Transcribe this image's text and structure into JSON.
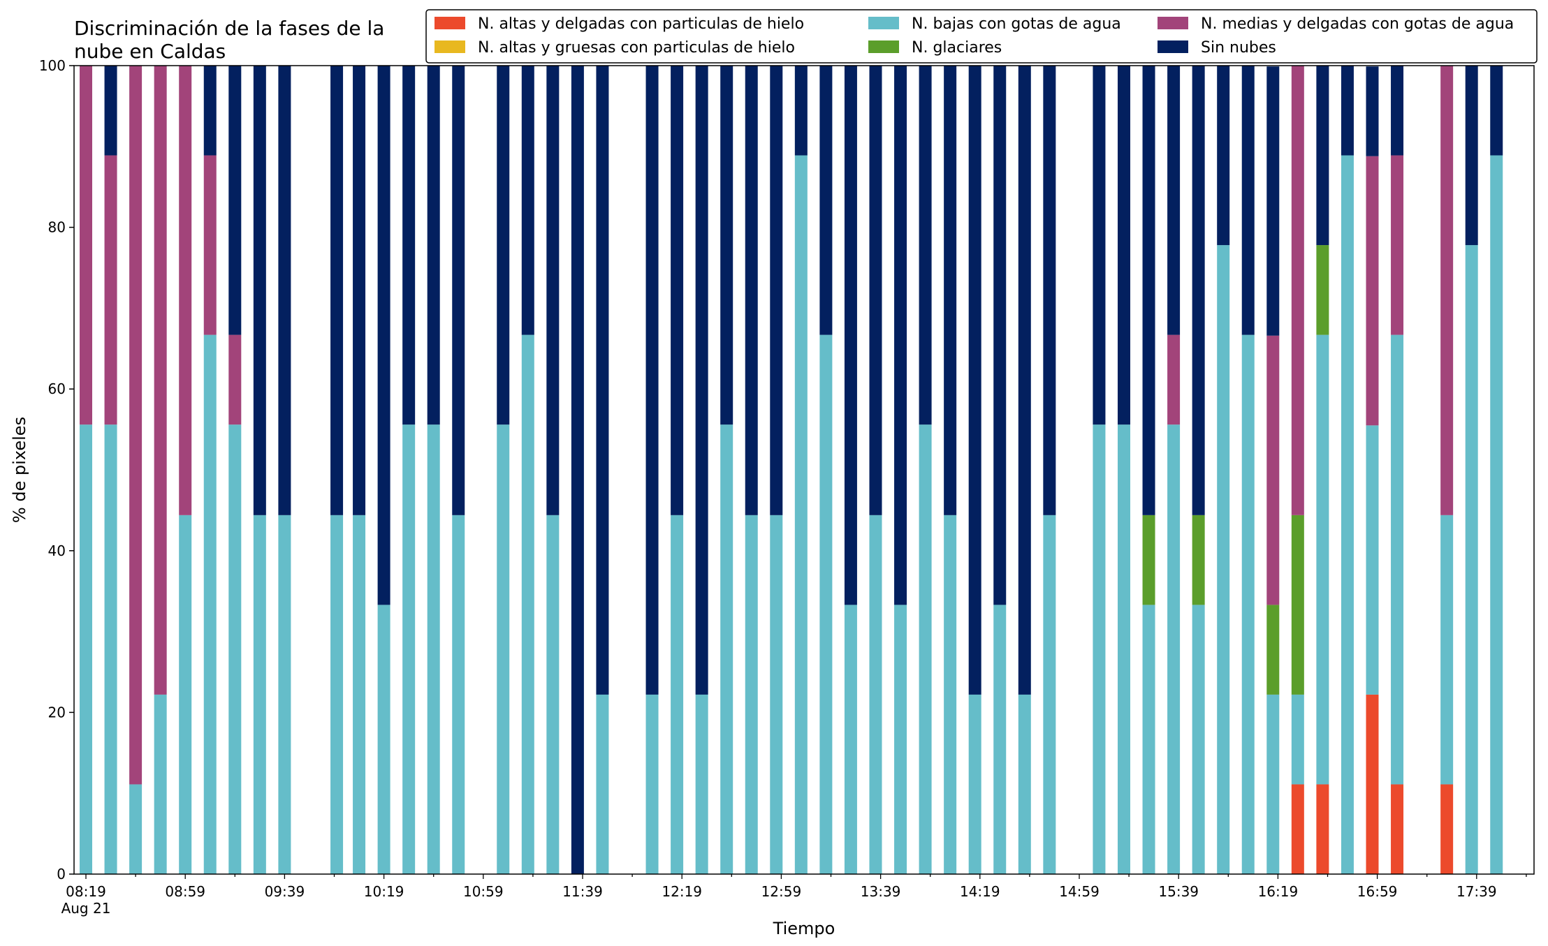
{
  "chart_data": {
    "type": "bar",
    "stacked": true,
    "title_lines": [
      "Discriminación de la fases de la",
      "nube en Caldas"
    ],
    "xlabel": "Tiempo",
    "ylabel": "% de pixeles",
    "ylim": [
      0,
      100
    ],
    "yticks": [
      0,
      20,
      40,
      60,
      80,
      100
    ],
    "xticks": [
      "08:19",
      "08:59",
      "09:39",
      "10:19",
      "10:59",
      "11:39",
      "12:19",
      "12:59",
      "13:39",
      "14:19",
      "14:59",
      "15:39",
      "16:19",
      "16:59",
      "17:39"
    ],
    "x_sublabel": "Aug 21",
    "grid": false,
    "legend_position": "top-right",
    "legend_columns": 3,
    "series": [
      {
        "name": "N. altas y delgadas con particulas de hielo",
        "color": "#ec4a2c"
      },
      {
        "name": "N. altas y gruesas con particulas de hielo",
        "color": "#e8b820"
      },
      {
        "name": "N. bajas con gotas de agua",
        "color": "#65bdc9"
      },
      {
        "name": "N. glaciares",
        "color": "#5b9e2b"
      },
      {
        "name": "N. medias y delgadas con gotas de agua",
        "color": "#a2447a"
      },
      {
        "name": "Sin nubes",
        "color": "#03205f"
      }
    ],
    "bars": [
      {
        "time": "08:19",
        "values": [
          0,
          0,
          55.6,
          0,
          44.4,
          0
        ]
      },
      {
        "time": "08:29",
        "values": [
          0,
          0,
          55.6,
          0,
          33.3,
          11.1
        ]
      },
      {
        "time": "08:39",
        "values": [
          0,
          0,
          11.1,
          0,
          88.9,
          0
        ]
      },
      {
        "time": "08:49",
        "values": [
          0,
          0,
          22.2,
          0,
          77.8,
          0
        ]
      },
      {
        "time": "08:59",
        "values": [
          0,
          0,
          44.4,
          0,
          55.6,
          0
        ]
      },
      {
        "time": "09:09",
        "values": [
          0,
          0,
          66.7,
          0,
          22.2,
          11.1
        ]
      },
      {
        "time": "09:19",
        "values": [
          0,
          0,
          55.6,
          0,
          11.1,
          33.3
        ]
      },
      {
        "time": "09:29",
        "values": [
          0,
          0,
          44.4,
          0,
          0,
          55.6
        ]
      },
      {
        "time": "09:39",
        "values": [
          0,
          0,
          44.4,
          0,
          0,
          55.6
        ]
      },
      {
        "time": "10:00",
        "values": [
          0,
          0,
          44.4,
          0,
          0,
          55.6
        ]
      },
      {
        "time": "10:09",
        "values": [
          0,
          0,
          44.4,
          0,
          0,
          55.6
        ]
      },
      {
        "time": "10:19",
        "values": [
          0,
          0,
          33.3,
          0,
          0,
          66.7
        ]
      },
      {
        "time": "10:29",
        "values": [
          0,
          0,
          55.6,
          0,
          0,
          44.4
        ]
      },
      {
        "time": "10:39",
        "values": [
          0,
          0,
          55.6,
          0,
          0,
          44.4
        ]
      },
      {
        "time": "10:49",
        "values": [
          0,
          0,
          44.4,
          0,
          0,
          55.6
        ]
      },
      {
        "time": "11:07",
        "values": [
          0,
          0,
          55.6,
          0,
          0,
          44.4
        ]
      },
      {
        "time": "11:17",
        "values": [
          0,
          0,
          66.7,
          0,
          0,
          33.3
        ]
      },
      {
        "time": "11:27",
        "values": [
          0,
          0,
          44.4,
          0,
          0,
          55.6
        ]
      },
      {
        "time": "11:37",
        "values": [
          0,
          0,
          0,
          0,
          0,
          100
        ]
      },
      {
        "time": "11:47",
        "values": [
          0,
          0,
          22.2,
          0,
          0,
          77.8
        ]
      },
      {
        "time": "12:07",
        "values": [
          0,
          0,
          22.2,
          0,
          0,
          77.8
        ]
      },
      {
        "time": "12:17",
        "values": [
          0,
          0,
          44.4,
          0,
          0,
          55.6
        ]
      },
      {
        "time": "12:27",
        "values": [
          0,
          0,
          22.2,
          0,
          0,
          77.8
        ]
      },
      {
        "time": "12:37",
        "values": [
          0,
          0,
          55.6,
          0,
          0,
          44.4
        ]
      },
      {
        "time": "12:47",
        "values": [
          0,
          0,
          44.4,
          0,
          0,
          55.6
        ]
      },
      {
        "time": "12:57",
        "values": [
          0,
          0,
          44.4,
          0,
          0,
          55.6
        ]
      },
      {
        "time": "13:07",
        "values": [
          0,
          0,
          88.9,
          0,
          0,
          11.1
        ]
      },
      {
        "time": "13:17",
        "values": [
          0,
          0,
          66.7,
          0,
          0,
          33.3
        ]
      },
      {
        "time": "13:27",
        "values": [
          0,
          0,
          33.3,
          0,
          0,
          66.7
        ]
      },
      {
        "time": "13:37",
        "values": [
          0,
          0,
          44.4,
          0,
          0,
          55.6
        ]
      },
      {
        "time": "13:47",
        "values": [
          0,
          0,
          33.3,
          0,
          0,
          66.7
        ]
      },
      {
        "time": "13:57",
        "values": [
          0,
          0,
          55.6,
          0,
          0,
          44.4
        ]
      },
      {
        "time": "14:07",
        "values": [
          0,
          0,
          44.4,
          0,
          0,
          55.6
        ]
      },
      {
        "time": "14:17",
        "values": [
          0,
          0,
          22.2,
          0,
          0,
          77.8
        ]
      },
      {
        "time": "14:27",
        "values": [
          0,
          0,
          33.3,
          0,
          0,
          66.7
        ]
      },
      {
        "time": "14:37",
        "values": [
          0,
          0,
          22.2,
          0,
          0,
          77.8
        ]
      },
      {
        "time": "14:47",
        "values": [
          0,
          0,
          44.4,
          0,
          0,
          55.6
        ]
      },
      {
        "time": "15:07",
        "values": [
          0,
          0,
          55.6,
          0,
          0,
          44.4
        ]
      },
      {
        "time": "15:17",
        "values": [
          0,
          0,
          55.6,
          0,
          0,
          44.4
        ]
      },
      {
        "time": "15:27",
        "values": [
          0,
          0,
          33.3,
          11.1,
          0,
          55.6
        ]
      },
      {
        "time": "15:37",
        "values": [
          0,
          0,
          55.6,
          0,
          11.1,
          33.3
        ]
      },
      {
        "time": "15:47",
        "values": [
          0,
          0,
          33.3,
          11.1,
          0,
          55.6
        ]
      },
      {
        "time": "15:57",
        "values": [
          0,
          0,
          77.8,
          0,
          0,
          22.2
        ]
      },
      {
        "time": "16:07",
        "values": [
          0,
          0,
          66.7,
          0,
          0,
          33.3
        ]
      },
      {
        "time": "16:17",
        "values": [
          0,
          0,
          22.2,
          11.1,
          33.3,
          33.3
        ]
      },
      {
        "time": "16:27",
        "values": [
          11.1,
          0,
          11.1,
          22.2,
          55.6,
          0
        ]
      },
      {
        "time": "16:37",
        "values": [
          11.1,
          0,
          55.6,
          11.1,
          0,
          22.2
        ]
      },
      {
        "time": "16:47",
        "values": [
          0,
          0,
          88.9,
          0,
          0,
          11.1
        ]
      },
      {
        "time": "16:57",
        "values": [
          22.2,
          0,
          33.3,
          0,
          33.3,
          11.1
        ]
      },
      {
        "time": "17:07",
        "values": [
          11.1,
          0,
          55.6,
          0,
          22.2,
          11.1
        ]
      },
      {
        "time": "17:27",
        "values": [
          11.1,
          0,
          33.3,
          0,
          55.6,
          0
        ]
      },
      {
        "time": "17:37",
        "values": [
          0,
          0,
          77.8,
          0,
          0,
          22.2
        ]
      },
      {
        "time": "17:47",
        "values": [
          0,
          0,
          88.9,
          0,
          0,
          11.1
        ]
      }
    ]
  }
}
